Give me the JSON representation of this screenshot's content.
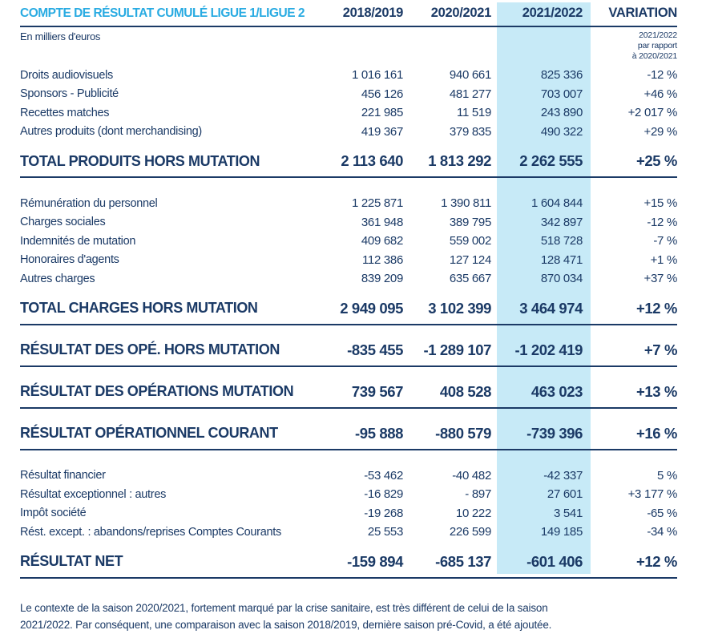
{
  "page": {
    "title": "COMPTE DE RÉSULTAT CUMULÉ LIGUE 1/LIGUE 2",
    "unit_note": "En milliers d'euros",
    "variation_note": [
      "2021/2022",
      "par rapport",
      "à 2020/2021"
    ],
    "footnote": "Le contexte de la saison 2020/2021, fortement marqué par la crise sanitaire, est très différent de celui de la saison 2021/2022. Par conséquent, une comparaison avec la saison 2018/2019, dernière saison pré-Covid, a été ajoutée."
  },
  "colors": {
    "navy": "#1b3a66",
    "cyan_accent": "#29abe2",
    "highlight_band": "#c7eaf7"
  },
  "table": {
    "columns": [
      "2018/2019",
      "2020/2021",
      "2021/2022",
      "VARIATION"
    ],
    "highlighted_column": "2021/2022",
    "rows": [
      {
        "type": "item",
        "label": "Droits audiovisuels",
        "values": [
          "1 016 161",
          "940 661",
          "825 336",
          "-12 %"
        ]
      },
      {
        "type": "item",
        "label": "Sponsors - Publicité",
        "values": [
          "456 126",
          "481 277",
          "703 007",
          "+46 %"
        ]
      },
      {
        "type": "item",
        "label": "Recettes matches",
        "values": [
          "221 985",
          "11 519",
          "243 890",
          "+2 017 %"
        ]
      },
      {
        "type": "item",
        "label": "Autres produits (dont merchandising)",
        "values": [
          "419 367",
          "379 835",
          "490 322",
          "+29 %"
        ]
      },
      {
        "type": "total",
        "label": "TOTAL PRODUITS HORS MUTATION",
        "values": [
          "2 113 640",
          "1 813 292",
          "2 262 555",
          "+25 %"
        ]
      },
      {
        "type": "item",
        "label": "Rémunération du personnel",
        "values": [
          "1 225 871",
          "1 390 811",
          "1 604 844",
          "+15 %"
        ]
      },
      {
        "type": "item",
        "label": "Charges sociales",
        "values": [
          "361 948",
          "389 795",
          "342 897",
          "-12 %"
        ]
      },
      {
        "type": "item",
        "label": "Indemnités de mutation",
        "values": [
          "409 682",
          "559 002",
          "518 728",
          "-7 %"
        ]
      },
      {
        "type": "item",
        "label": "Honoraires d'agents",
        "values": [
          "112 386",
          "127 124",
          "128 471",
          "+1 %"
        ]
      },
      {
        "type": "item",
        "label": "Autres charges",
        "values": [
          "839 209",
          "635 667",
          "870 034",
          "+37 %"
        ]
      },
      {
        "type": "total",
        "label": "TOTAL CHARGES HORS MUTATION",
        "values": [
          "2 949 095",
          "3 102 399",
          "3 464 974",
          "+12 %"
        ]
      },
      {
        "type": "total",
        "label": "RÉSULTAT DES OPÉ. HORS MUTATION",
        "values": [
          "-835 455",
          "-1 289 107",
          "-1 202 419",
          "+7 %"
        ]
      },
      {
        "type": "total",
        "label": "RÉSULTAT DES OPÉRATIONS MUTATION",
        "values": [
          "739 567",
          "408 528",
          "463 023",
          "+13 %"
        ]
      },
      {
        "type": "total",
        "label": "RÉSULTAT OPÉRATIONNEL COURANT",
        "values": [
          "-95 888",
          "-880 579",
          "-739 396",
          "+16 %"
        ]
      },
      {
        "type": "item",
        "label": "Résultat financier",
        "values": [
          "-53 462",
          "-40 482",
          "-42 337",
          "5 %"
        ]
      },
      {
        "type": "item",
        "label": "Résultat exceptionnel : autres",
        "values": [
          "-16 829",
          "- 897",
          "27 601",
          "+3 177 %"
        ]
      },
      {
        "type": "item",
        "label": "Impôt société",
        "values": [
          "-19 268",
          "10 222",
          "3 541",
          "-65 %"
        ]
      },
      {
        "type": "item",
        "label": "Rést. except. : abandons/reprises Comptes Courants",
        "values": [
          "25 553",
          "226 599",
          "149 185",
          "-34 %"
        ]
      },
      {
        "type": "total",
        "label": "RÉSULTAT NET",
        "values": [
          "-159 894",
          "-685 137",
          "-601 406",
          "+12 %"
        ]
      }
    ]
  }
}
